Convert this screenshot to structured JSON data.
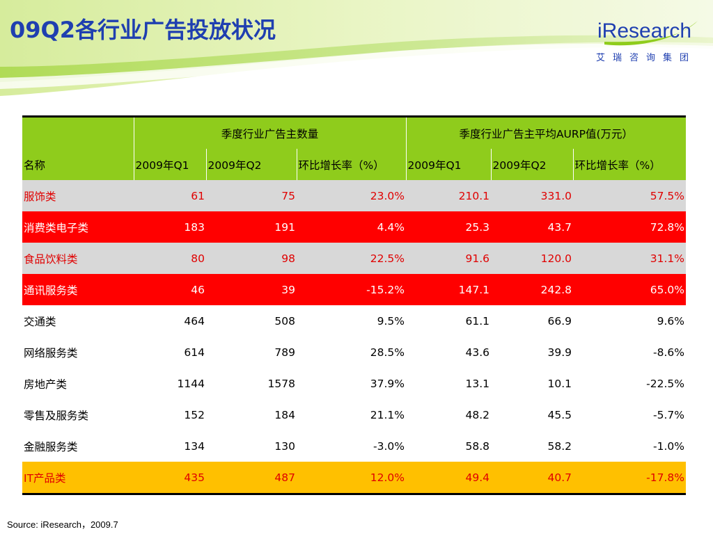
{
  "slide": {
    "title": "09Q2各行业广告投放状况",
    "logo": {
      "brand": "iResearch",
      "subtitle": "艾瑞咨询集团"
    },
    "source": "Source: iResearch，2009.7"
  },
  "table": {
    "group_headers": [
      "季度行业广告主数量",
      "季度行业广告主平均AURP值(万元）"
    ],
    "columns": [
      "名称",
      "2009年Q1",
      "2009年Q2",
      "环比增长率（%）",
      "2009年Q1",
      "2009年Q2",
      "环比增长率（%）"
    ],
    "rows": [
      [
        "服饰类",
        "61",
        "75",
        "23.0%",
        "210.1",
        "331.0",
        "57.5%"
      ],
      [
        "消费类电子类",
        "183",
        "191",
        "4.4%",
        "25.3",
        "43.7",
        "72.8%"
      ],
      [
        "食品饮料类",
        "80",
        "98",
        "22.5%",
        "91.6",
        "120.0",
        "31.1%"
      ],
      [
        "通讯服务类",
        "46",
        "39",
        "-15.2%",
        "147.1",
        "242.8",
        "65.0%"
      ],
      [
        "交通类",
        "464",
        "508",
        "9.5%",
        "61.1",
        "66.9",
        "9.6%"
      ],
      [
        "网络服务类",
        "614",
        "789",
        "28.5%",
        "43.6",
        "39.9",
        "-8.6%"
      ],
      [
        "房地产类",
        "1144",
        "1578",
        "37.9%",
        "13.1",
        "10.1",
        "-22.5%"
      ],
      [
        "零售及服务类",
        "152",
        "184",
        "21.1%",
        "48.2",
        "45.5",
        "-5.7%"
      ],
      [
        "金融服务类",
        "134",
        "130",
        "-3.0%",
        "58.8",
        "58.2",
        "-1.0%"
      ],
      [
        "IT产品类",
        "435",
        "487",
        "12.0%",
        "49.4",
        "40.7",
        "-17.8%"
      ]
    ]
  },
  "colors": {
    "title": "#1f3fb0",
    "header_green": "#8fcc1c",
    "row_gray": "#d8d8d8",
    "row_red": "#ff0000",
    "row_orange": "#ffc000",
    "text_red": "#e00000"
  }
}
